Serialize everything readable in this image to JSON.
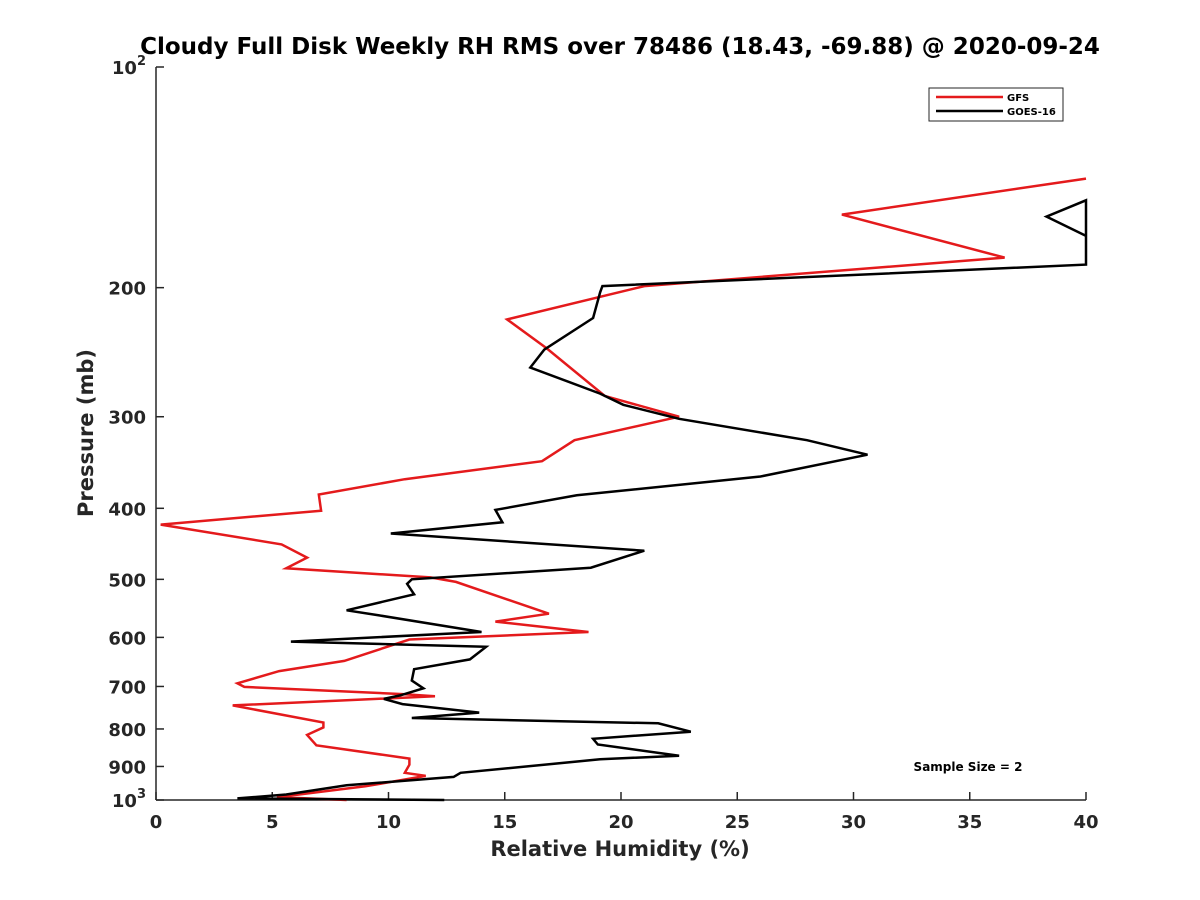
{
  "chart_data": {
    "type": "line",
    "title": "Cloudy Full Disk Weekly RH RMS over 78486 (18.43, -69.88) @ 2020-09-24",
    "xlabel": "Relative Humidity (%)",
    "ylabel": "Pressure (mb)",
    "xlim": [
      0,
      40
    ],
    "ylim": [
      100,
      1000
    ],
    "yscale": "log",
    "y_reversed": true,
    "grid": false,
    "legend_position": "top-right",
    "xticks": [
      "0",
      "5",
      "10",
      "15",
      "20",
      "25",
      "30",
      "35",
      "40"
    ],
    "yticks": [
      {
        "value": 100,
        "label": "10",
        "exp": "2"
      },
      {
        "value": 200,
        "label": "200"
      },
      {
        "value": 300,
        "label": "300"
      },
      {
        "value": 400,
        "label": "400"
      },
      {
        "value": 500,
        "label": "500"
      },
      {
        "value": 600,
        "label": "600"
      },
      {
        "value": 700,
        "label": "700"
      },
      {
        "value": 800,
        "label": "800"
      },
      {
        "value": 900,
        "label": "900"
      },
      {
        "value": 1000,
        "label": "10",
        "exp": "3"
      }
    ],
    "annotation": "Sample Size = 2",
    "series": [
      {
        "name": "GFS",
        "color": "#e41a1c",
        "points": [
          [
            40.0,
            142
          ],
          [
            29.5,
            159
          ],
          [
            36.5,
            182
          ],
          [
            21.0,
            199
          ],
          [
            15.1,
            221
          ],
          [
            16.8,
            242
          ],
          [
            19.3,
            281
          ],
          [
            22.5,
            300
          ],
          [
            18.0,
            323
          ],
          [
            16.6,
            345
          ],
          [
            10.7,
            365
          ],
          [
            7.0,
            383
          ],
          [
            7.1,
            403
          ],
          [
            0.2,
            421
          ],
          [
            5.4,
            448
          ],
          [
            6.5,
            467
          ],
          [
            5.6,
            483
          ],
          [
            11.8,
            497
          ],
          [
            12.9,
            504
          ],
          [
            16.9,
            557
          ],
          [
            14.6,
            571
          ],
          [
            18.6,
            590
          ],
          [
            10.9,
            604
          ],
          [
            8.1,
            646
          ],
          [
            5.3,
            667
          ],
          [
            3.5,
            693
          ],
          [
            3.8,
            701
          ],
          [
            10.6,
            717
          ],
          [
            12.0,
            722
          ],
          [
            3.3,
            743
          ],
          [
            7.2,
            784
          ],
          [
            7.2,
            796
          ],
          [
            6.5,
            815
          ],
          [
            6.9,
            842
          ],
          [
            10.9,
            878
          ],
          [
            10.9,
            895
          ],
          [
            10.7,
            918
          ],
          [
            11.6,
            927
          ],
          [
            9.0,
            958
          ],
          [
            5.8,
            986
          ],
          [
            5.2,
            991
          ],
          [
            8.2,
            1000
          ]
        ]
      },
      {
        "name": "GOES-16",
        "color": "#000000",
        "points": [
          [
            40.0,
            170
          ],
          [
            38.3,
            160
          ],
          [
            40.0,
            152
          ],
          [
            40.0,
            186
          ],
          [
            19.2,
            199
          ],
          [
            19.1,
            203
          ],
          [
            18.8,
            220
          ],
          [
            16.7,
            243
          ],
          [
            16.1,
            257
          ],
          [
            19.1,
            279
          ],
          [
            20.1,
            289
          ],
          [
            22.5,
            302
          ],
          [
            28.0,
            323
          ],
          [
            30.6,
            338
          ],
          [
            26.0,
            362
          ],
          [
            18.1,
            384
          ],
          [
            14.6,
            402
          ],
          [
            14.9,
            418
          ],
          [
            10.1,
            433
          ],
          [
            21.0,
            457
          ],
          [
            18.7,
            482
          ],
          [
            11.0,
            500
          ],
          [
            10.8,
            507
          ],
          [
            11.1,
            524
          ],
          [
            8.2,
            551
          ],
          [
            9.6,
            560
          ],
          [
            14.0,
            590
          ],
          [
            5.8,
            608
          ],
          [
            14.2,
            618
          ],
          [
            13.5,
            643
          ],
          [
            11.1,
            663
          ],
          [
            11.0,
            687
          ],
          [
            11.5,
            704
          ],
          [
            10.5,
            720
          ],
          [
            9.8,
            728
          ],
          [
            10.6,
            740
          ],
          [
            13.9,
            760
          ],
          [
            11.0,
            773
          ],
          [
            21.6,
            786
          ],
          [
            23.0,
            807
          ],
          [
            18.8,
            825
          ],
          [
            19.0,
            840
          ],
          [
            22.5,
            870
          ],
          [
            19.1,
            880
          ],
          [
            13.1,
            918
          ],
          [
            12.8,
            930
          ],
          [
            8.2,
            955
          ],
          [
            5.6,
            983
          ],
          [
            3.5,
            995
          ],
          [
            12.4,
            1000
          ]
        ]
      }
    ]
  }
}
